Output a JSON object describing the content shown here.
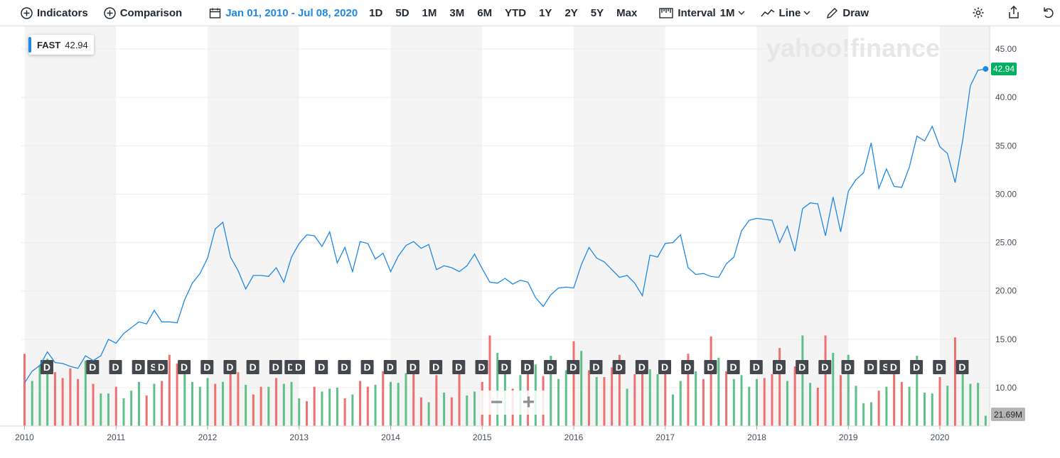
{
  "toolbar": {
    "indicators_label": "Indicators",
    "comparison_label": "Comparison",
    "date_range": "Jan 01, 2010 - Jul 08, 2020",
    "ranges": [
      "1D",
      "5D",
      "1M",
      "3M",
      "6M",
      "YTD",
      "1Y",
      "2Y",
      "5Y",
      "Max"
    ],
    "interval_label": "Interval",
    "interval_value": "1M",
    "chart_type_label": "Line",
    "draw_label": "Draw"
  },
  "symbol_label": {
    "symbol": "FAST",
    "value": "42.94"
  },
  "watermark": "yahoo!finance",
  "zoom": {
    "minus": "−",
    "plus": "+"
  },
  "colors": {
    "line": "#1e88e5",
    "up": "#5fc08a",
    "down": "#f07070",
    "price_tag": "#00b060",
    "volume_tag": "#b5b5b5"
  },
  "chart_data": {
    "type": "line",
    "series": [
      {
        "name": "FAST",
        "interval": "1M",
        "dates": [
          "2010-01",
          "2010-02",
          "2010-03",
          "2010-04",
          "2010-05",
          "2010-06",
          "2010-07",
          "2010-08",
          "2010-09",
          "2010-10",
          "2010-11",
          "2010-12",
          "2011-01",
          "2011-02",
          "2011-03",
          "2011-04",
          "2011-05",
          "2011-06",
          "2011-07",
          "2011-08",
          "2011-09",
          "2011-10",
          "2011-11",
          "2011-12",
          "2012-01",
          "2012-02",
          "2012-03",
          "2012-04",
          "2012-05",
          "2012-06",
          "2012-07",
          "2012-08",
          "2012-09",
          "2012-10",
          "2012-11",
          "2012-12",
          "2013-01",
          "2013-02",
          "2013-03",
          "2013-04",
          "2013-05",
          "2013-06",
          "2013-07",
          "2013-08",
          "2013-09",
          "2013-10",
          "2013-11",
          "2013-12",
          "2014-01",
          "2014-02",
          "2014-03",
          "2014-04",
          "2014-05",
          "2014-06",
          "2014-07",
          "2014-08",
          "2014-09",
          "2014-10",
          "2014-11",
          "2014-12",
          "2015-01",
          "2015-02",
          "2015-03",
          "2015-04",
          "2015-05",
          "2015-06",
          "2015-07",
          "2015-08",
          "2015-09",
          "2015-10",
          "2015-11",
          "2015-12",
          "2016-01",
          "2016-02",
          "2016-03",
          "2016-04",
          "2016-05",
          "2016-06",
          "2016-07",
          "2016-08",
          "2016-09",
          "2016-10",
          "2016-11",
          "2016-12",
          "2017-01",
          "2017-02",
          "2017-03",
          "2017-04",
          "2017-05",
          "2017-06",
          "2017-07",
          "2017-08",
          "2017-09",
          "2017-10",
          "2017-11",
          "2017-12",
          "2018-01",
          "2018-02",
          "2018-03",
          "2018-04",
          "2018-05",
          "2018-06",
          "2018-07",
          "2018-08",
          "2018-09",
          "2018-10",
          "2018-11",
          "2018-12",
          "2019-01",
          "2019-02",
          "2019-03",
          "2019-04",
          "2019-05",
          "2019-06",
          "2019-07",
          "2019-08",
          "2019-09",
          "2019-10",
          "2019-11",
          "2019-12",
          "2020-01",
          "2020-02",
          "2020-03",
          "2020-04",
          "2020-05",
          "2020-06",
          "2020-07"
        ],
        "close": [
          10.5,
          11.7,
          12.3,
          13.7,
          12.6,
          12.5,
          12.2,
          12.0,
          13.3,
          12.8,
          13.3,
          15.0,
          14.6,
          15.6,
          16.2,
          16.8,
          16.6,
          18.0,
          16.8,
          16.8,
          16.7,
          19.1,
          20.8,
          21.8,
          23.4,
          26.4,
          27.1,
          23.5,
          22.1,
          20.2,
          21.6,
          21.6,
          21.5,
          22.4,
          20.9,
          23.5,
          24.9,
          25.8,
          25.7,
          24.6,
          26.1,
          22.9,
          24.5,
          22.0,
          25.1,
          24.9,
          23.3,
          23.9,
          22.0,
          23.6,
          24.7,
          25.1,
          24.4,
          24.8,
          22.2,
          22.6,
          22.4,
          22.0,
          22.6,
          23.8,
          22.3,
          20.9,
          20.8,
          21.3,
          20.7,
          21.1,
          20.9,
          19.3,
          18.4,
          19.6,
          20.3,
          20.4,
          20.3,
          22.7,
          24.5,
          23.4,
          23.0,
          22.2,
          21.4,
          21.6,
          20.8,
          19.5,
          23.7,
          23.5,
          24.9,
          25.0,
          25.8,
          22.4,
          21.7,
          21.8,
          21.5,
          21.4,
          22.8,
          23.5,
          26.2,
          27.3,
          27.5,
          27.4,
          27.3,
          25.0,
          26.7,
          24.1,
          28.5,
          29.1,
          29.0,
          25.7,
          29.7,
          26.1,
          30.3,
          31.5,
          32.2,
          35.3,
          30.6,
          32.6,
          30.8,
          30.7,
          32.8,
          36.0,
          35.5,
          37.0,
          34.9,
          34.2,
          31.2,
          35.6,
          41.2,
          42.8,
          42.94
        ]
      }
    ],
    "volume_bars": [
      {
        "color": "down",
        "level": 13.5
      },
      {
        "color": "up",
        "level": 10.7
      },
      {
        "color": "up",
        "level": 12.3
      },
      {
        "color": "up",
        "level": 13.0
      },
      {
        "color": "down",
        "level": 11.6
      },
      {
        "color": "down",
        "level": 11.0
      },
      {
        "color": "down",
        "level": 12.0
      },
      {
        "color": "down",
        "level": 10.9
      },
      {
        "color": "up",
        "level": 12.8
      },
      {
        "color": "down",
        "level": 10.4
      },
      {
        "color": "up",
        "level": 9.4
      },
      {
        "color": "up",
        "level": 9.4
      },
      {
        "color": "down",
        "level": 10.1
      },
      {
        "color": "up",
        "level": 8.9
      },
      {
        "color": "up",
        "level": 9.7
      },
      {
        "color": "up",
        "level": 10.6
      },
      {
        "color": "down",
        "level": 9.2
      },
      {
        "color": "up",
        "level": 10.4
      },
      {
        "color": "down",
        "level": 10.7
      },
      {
        "color": "down",
        "level": 13.4
      },
      {
        "color": "down",
        "level": 12.5
      },
      {
        "color": "up",
        "level": 12.0
      },
      {
        "color": "up",
        "level": 10.6
      },
      {
        "color": "up",
        "level": 10.1
      },
      {
        "color": "up",
        "level": 11.0
      },
      {
        "color": "down",
        "level": 10.4
      },
      {
        "color": "up",
        "level": 10.6
      },
      {
        "color": "down",
        "level": 12.0
      },
      {
        "color": "down",
        "level": 11.6
      },
      {
        "color": "up",
        "level": 10.3
      },
      {
        "color": "down",
        "level": 9.3
      },
      {
        "color": "down",
        "level": 10.1
      },
      {
        "color": "up",
        "level": 10.1
      },
      {
        "color": "down",
        "level": 11.0
      },
      {
        "color": "up",
        "level": 10.4
      },
      {
        "color": "up",
        "level": 10.6
      },
      {
        "color": "up",
        "level": 8.9
      },
      {
        "color": "down",
        "level": 8.6
      },
      {
        "color": "down",
        "level": 10.1
      },
      {
        "color": "up",
        "level": 9.6
      },
      {
        "color": "up",
        "level": 9.9
      },
      {
        "color": "up",
        "level": 10.0
      },
      {
        "color": "down",
        "level": 8.9
      },
      {
        "color": "up",
        "level": 9.3
      },
      {
        "color": "down",
        "level": 10.7
      },
      {
        "color": "down",
        "level": 10.1
      },
      {
        "color": "up",
        "level": 10.3
      },
      {
        "color": "down",
        "level": 11.7
      },
      {
        "color": "up",
        "level": 10.6
      },
      {
        "color": "up",
        "level": 10.5
      },
      {
        "color": "up",
        "level": 11.5
      },
      {
        "color": "down",
        "level": 11.8
      },
      {
        "color": "down",
        "level": 9.0
      },
      {
        "color": "up",
        "level": 8.5
      },
      {
        "color": "down",
        "level": 11.3
      },
      {
        "color": "up",
        "level": 9.5
      },
      {
        "color": "down",
        "level": 9.0
      },
      {
        "color": "down",
        "level": 11.8
      },
      {
        "color": "up",
        "level": 9.2
      },
      {
        "color": "up",
        "level": 9.6
      },
      {
        "color": "down",
        "level": 10.6
      },
      {
        "color": "down",
        "level": 15.4
      },
      {
        "color": "up",
        "level": 13.6
      },
      {
        "color": "up",
        "level": 11.6
      },
      {
        "color": "down",
        "level": 9.9
      },
      {
        "color": "up",
        "level": 11.3
      },
      {
        "color": "down",
        "level": 11.5
      },
      {
        "color": "up",
        "level": 12.4
      },
      {
        "color": "down",
        "level": 11.2
      },
      {
        "color": "up",
        "level": 13.3
      },
      {
        "color": "up",
        "level": 10.9
      },
      {
        "color": "up",
        "level": 11.8
      },
      {
        "color": "down",
        "level": 14.8
      },
      {
        "color": "up",
        "level": 13.8
      },
      {
        "color": "down",
        "level": 11.8
      },
      {
        "color": "up",
        "level": 11.1
      },
      {
        "color": "down",
        "level": 11.1
      },
      {
        "color": "down",
        "level": 12.1
      },
      {
        "color": "down",
        "level": 13.4
      },
      {
        "color": "up",
        "level": 9.9
      },
      {
        "color": "down",
        "level": 11.4
      },
      {
        "color": "down",
        "level": 12.6
      },
      {
        "color": "up",
        "level": 11.9
      },
      {
        "color": "up",
        "level": 11.4
      },
      {
        "color": "down",
        "level": 11.8
      },
      {
        "color": "up",
        "level": 9.3
      },
      {
        "color": "up",
        "level": 10.7
      },
      {
        "color": "down",
        "level": 13.5
      },
      {
        "color": "up",
        "level": 11.7
      },
      {
        "color": "down",
        "level": 10.9
      },
      {
        "color": "down",
        "level": 15.3
      },
      {
        "color": "up",
        "level": 13.1
      },
      {
        "color": "down",
        "level": 11.7
      },
      {
        "color": "up",
        "level": 10.9
      },
      {
        "color": "up",
        "level": 11.3
      },
      {
        "color": "up",
        "level": 10.1
      },
      {
        "color": "up",
        "level": 10.9
      },
      {
        "color": "down",
        "level": 11.0
      },
      {
        "color": "down",
        "level": 11.4
      },
      {
        "color": "down",
        "level": 14.1
      },
      {
        "color": "up",
        "level": 10.7
      },
      {
        "color": "down",
        "level": 12.2
      },
      {
        "color": "up",
        "level": 15.4
      },
      {
        "color": "up",
        "level": 10.5
      },
      {
        "color": "down",
        "level": 10.0
      },
      {
        "color": "down",
        "level": 15.4
      },
      {
        "color": "up",
        "level": 13.6
      },
      {
        "color": "down",
        "level": 11.3
      },
      {
        "color": "up",
        "level": 13.4
      },
      {
        "color": "up",
        "level": 10.2
      },
      {
        "color": "up",
        "level": 8.4
      },
      {
        "color": "up",
        "level": 8.5
      },
      {
        "color": "down",
        "level": 9.7
      },
      {
        "color": "up",
        "level": 10.1
      },
      {
        "color": "down",
        "level": 11.6
      },
      {
        "color": "down",
        "level": 10.6
      },
      {
        "color": "up",
        "level": 10.1
      },
      {
        "color": "up",
        "level": 13.3
      },
      {
        "color": "up",
        "level": 9.5
      },
      {
        "color": "up",
        "level": 9.4
      },
      {
        "color": "down",
        "level": 11.1
      },
      {
        "color": "up",
        "level": 10.2
      },
      {
        "color": "down",
        "level": 15.2
      },
      {
        "color": "up",
        "level": 12.3
      },
      {
        "color": "up",
        "level": 10.4
      },
      {
        "color": "up",
        "level": 10.5
      },
      {
        "color": "up",
        "level": 7.1
      }
    ],
    "dividend_markers": [
      {
        "date": "2010-03",
        "label": "D"
      },
      {
        "date": "2010-09",
        "label": "D"
      },
      {
        "date": "2010-12",
        "label": "D"
      },
      {
        "date": "2011-03",
        "label": "D"
      },
      {
        "date": "2011-05",
        "label": "S"
      },
      {
        "date": "2011-06",
        "label": "D"
      },
      {
        "date": "2011-09",
        "label": "D"
      },
      {
        "date": "2011-12",
        "label": "D"
      },
      {
        "date": "2012-03",
        "label": "D"
      },
      {
        "date": "2012-06",
        "label": "D"
      },
      {
        "date": "2012-09",
        "label": "D"
      },
      {
        "date": "2012-11",
        "label": "D"
      },
      {
        "date": "2012-12",
        "label": "D"
      },
      {
        "date": "2013-03",
        "label": "D"
      },
      {
        "date": "2013-06",
        "label": "D"
      },
      {
        "date": "2013-09",
        "label": "D"
      },
      {
        "date": "2013-12",
        "label": "D"
      },
      {
        "date": "2014-03",
        "label": "D"
      },
      {
        "date": "2014-06",
        "label": "D"
      },
      {
        "date": "2014-09",
        "label": "D"
      },
      {
        "date": "2014-12",
        "label": "D"
      },
      {
        "date": "2015-03",
        "label": "D"
      },
      {
        "date": "2015-06",
        "label": "D"
      },
      {
        "date": "2015-09",
        "label": "D"
      },
      {
        "date": "2015-12",
        "label": "D"
      },
      {
        "date": "2016-03",
        "label": "D"
      },
      {
        "date": "2016-06",
        "label": "D"
      },
      {
        "date": "2016-09",
        "label": "D"
      },
      {
        "date": "2016-12",
        "label": "D"
      },
      {
        "date": "2017-03",
        "label": "D"
      },
      {
        "date": "2017-06",
        "label": "D"
      },
      {
        "date": "2017-09",
        "label": "D"
      },
      {
        "date": "2017-12",
        "label": "D"
      },
      {
        "date": "2018-03",
        "label": "D"
      },
      {
        "date": "2018-06",
        "label": "D"
      },
      {
        "date": "2018-09",
        "label": "D"
      },
      {
        "date": "2018-12",
        "label": "D"
      },
      {
        "date": "2019-03",
        "label": "D"
      },
      {
        "date": "2019-05",
        "label": "S"
      },
      {
        "date": "2019-06",
        "label": "D"
      },
      {
        "date": "2019-09",
        "label": "D"
      },
      {
        "date": "2019-12",
        "label": "D"
      },
      {
        "date": "2020-03",
        "label": "D"
      }
    ],
    "x_ticks": [
      {
        "date": "2010-01",
        "label": "2010"
      },
      {
        "date": "2011-01",
        "label": "2011"
      },
      {
        "date": "2012-01",
        "label": "2012"
      },
      {
        "date": "2013-01",
        "label": "2013"
      },
      {
        "date": "2014-01",
        "label": "2014"
      },
      {
        "date": "2015-01",
        "label": "2015"
      },
      {
        "date": "2016-01",
        "label": "2016"
      },
      {
        "date": "2017-01",
        "label": "2017"
      },
      {
        "date": "2018-01",
        "label": "2018"
      },
      {
        "date": "2019-01",
        "label": "2019"
      },
      {
        "date": "2020-01",
        "label": "2020"
      }
    ],
    "y_ticks": [
      10,
      15,
      20,
      25,
      30,
      35,
      40,
      45
    ],
    "y_tick_labels": [
      "10.00",
      "15.00",
      "20.00",
      "25.00",
      "30.00",
      "35.00",
      "40.00",
      "45.00"
    ],
    "ylim": [
      6.0,
      47.0
    ],
    "last_price_label": "42.94",
    "last_volume_label": "21.69M",
    "grid": true,
    "alternating_year_bands": true
  }
}
